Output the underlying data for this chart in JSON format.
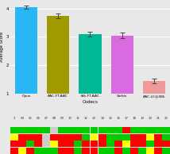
{
  "categories": [
    "Opus",
    "AAC-FT-AAC",
    "fdk-FT-AAC",
    "Vorbis",
    "AAC-LC@48k"
  ],
  "values": [
    4.05,
    3.75,
    3.1,
    3.05,
    1.45
  ],
  "errors": [
    0.06,
    0.08,
    0.08,
    0.09,
    0.08
  ],
  "bar_colors": [
    "#29b6f6",
    "#9e9a00",
    "#00b894",
    "#da6adf",
    "#ef9a9a"
  ],
  "xlabel": "Codecs",
  "ylabel": "Average Score",
  "ylim": [
    1,
    4.3
  ],
  "yticks": [
    1,
    2,
    3,
    4
  ],
  "bg_color": "#e8e8e8",
  "plot_bg": "#e8e8e8",
  "grid_color": "#ffffff",
  "grid_numbers": [
    "3",
    "04",
    "05",
    "06",
    "07",
    "08",
    "09",
    "10",
    "11",
    "12",
    "13",
    "14",
    "15",
    "16",
    "17",
    "18",
    "19",
    "20",
    "21",
    "22"
  ],
  "grid_rows": [
    [
      "g",
      "g",
      "g",
      "g",
      "g",
      "w",
      "g",
      "g",
      "g",
      "g",
      "g",
      "g",
      "g",
      "g",
      "r",
      "g",
      "g",
      "g",
      "g",
      "g"
    ],
    [
      "y",
      "r",
      "r",
      "r",
      "w",
      "r",
      "r",
      "r",
      "r",
      "g",
      "y",
      "r",
      "g",
      "g",
      "g",
      "r",
      "r",
      "y",
      "r",
      "g"
    ],
    [
      "r",
      "r",
      "g",
      "r",
      "w",
      "y",
      "r",
      "r",
      "g",
      "r",
      "r",
      "r",
      "g",
      "r",
      "y",
      "r",
      "r",
      "g",
      "r",
      "r"
    ],
    [
      "r",
      "y",
      "r",
      "g",
      "g",
      "g",
      "r",
      "r",
      "g",
      "r",
      "r",
      "g",
      "g",
      "r",
      "g",
      "r",
      "g",
      "y",
      "r",
      "g"
    ]
  ],
  "cell_colors": {
    "g": "#00cc00",
    "r": "#ff0000",
    "y": "#ffff00",
    "w": "#cccccc"
  }
}
